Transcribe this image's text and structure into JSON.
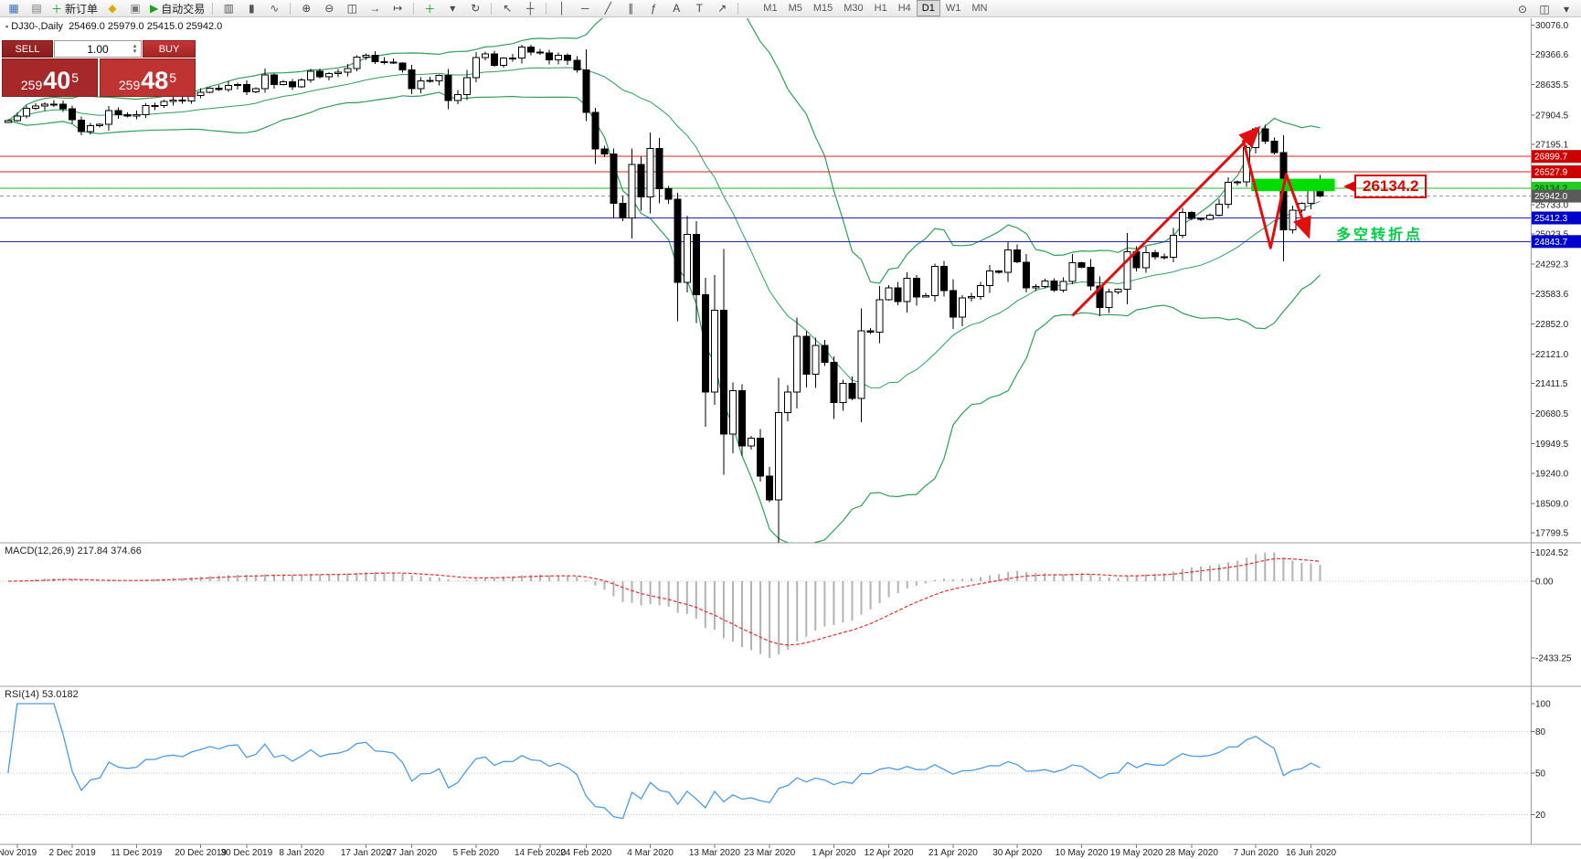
{
  "toolbar": {
    "buttons": [
      {
        "name": "new-chart",
        "glyph": "▦",
        "color": "#3b6fb5"
      },
      {
        "name": "profiles",
        "glyph": "▤",
        "color": "#777777"
      },
      {
        "name": "new-order",
        "glyph": "＋",
        "color": "#1fa01f",
        "label": "新订单"
      },
      {
        "name": "metaeditor",
        "glyph": "◆",
        "color": "#e0a800"
      },
      {
        "name": "terminal",
        "glyph": "▣",
        "color": "#777777"
      },
      {
        "name": "autotrading",
        "glyph": "▶",
        "color": "#1fa01f",
        "label": "自动交易"
      },
      {
        "sep": true
      },
      {
        "name": "bar-chart",
        "glyph": "▥",
        "color": "#555555"
      },
      {
        "name": "candle-chart",
        "glyph": "▮",
        "color": "#555555"
      },
      {
        "name": "line-chart",
        "glyph": "∿",
        "color": "#555555"
      },
      {
        "sep": true
      },
      {
        "name": "zoom-in",
        "glyph": "⊕",
        "color": "#444444"
      },
      {
        "name": "zoom-out",
        "glyph": "⊖",
        "color": "#444444"
      },
      {
        "name": "tile-windows",
        "glyph": "◫",
        "color": "#444444"
      },
      {
        "name": "auto-scroll",
        "glyph": "→",
        "color": "#444444"
      },
      {
        "name": "chart-shift",
        "glyph": "↦",
        "color": "#444444"
      },
      {
        "sep": true
      },
      {
        "name": "indicators",
        "glyph": "＋",
        "color": "#1fa01f"
      },
      {
        "name": "period-menu",
        "glyph": "▾",
        "color": "#444444"
      },
      {
        "name": "templates",
        "glyph": "↻",
        "color": "#444444"
      },
      {
        "sep": true
      },
      {
        "name": "cursor",
        "glyph": "↖",
        "color": "#444444"
      },
      {
        "name": "crosshair",
        "glyph": "┼",
        "color": "#444444"
      },
      {
        "sep": true
      },
      {
        "name": "vertical-line-tool",
        "glyph": "│",
        "color": "#444444"
      },
      {
        "name": "horizontal-line-tool",
        "glyph": "─",
        "color": "#444444"
      },
      {
        "name": "trendline-tool",
        "glyph": "╱",
        "color": "#444444"
      },
      {
        "name": "channel-tool",
        "glyph": "∥",
        "color": "#444444"
      },
      {
        "name": "fibonacci-tool",
        "glyph": "ƒ",
        "color": "#444444"
      },
      {
        "name": "text-tool",
        "glyph": "A",
        "color": "#444444"
      },
      {
        "name": "label-tool",
        "glyph": "T",
        "color": "#444444"
      },
      {
        "name": "arrows-tool",
        "glyph": "↗",
        "color": "#444444"
      },
      {
        "sep": true
      }
    ],
    "timeframes": [
      "M1",
      "M5",
      "M15",
      "M30",
      "H1",
      "H4",
      "D1",
      "W1",
      "MN"
    ],
    "active_timeframe": "D1",
    "right_buttons": [
      {
        "name": "search",
        "glyph": "⊙",
        "color": "#444444"
      },
      {
        "name": "layout",
        "glyph": "◫",
        "color": "#444444"
      },
      {
        "name": "more",
        "glyph": "▾",
        "color": "#444444"
      }
    ]
  },
  "chart": {
    "symbol_period": "DJ30-,Daily",
    "ohlc": "25469.0 25979.0 25415.0 25942.0"
  },
  "trade_panel": {
    "sell_label": "SELL",
    "buy_label": "BUY",
    "volume": "1.00",
    "sell_price": "25940.5",
    "buy_price": "25948.5",
    "sell_pre": "259",
    "sell_big": "40",
    "sell_sup": "5",
    "buy_pre": "259",
    "buy_big": "48",
    "buy_sup": "5"
  },
  "chart_data": {
    "type": "candlestick",
    "symbol": "DJ30-",
    "timeframe": "Daily",
    "ohlc_current": {
      "open": 25469.0,
      "high": 25979.0,
      "low": 25415.0,
      "close": 25942.0
    },
    "price_range": {
      "top": 30076.0,
      "bottom": 17799.5
    },
    "closes": [
      27766,
      27875,
      28066,
      28121,
      28164,
      28164,
      28051,
      27783,
      27503,
      27650,
      27678,
      28015,
      27910,
      27882,
      27911,
      28132,
      28135,
      28236,
      28267,
      28239,
      28377,
      28455,
      28551,
      28515,
      28621,
      28645,
      28462,
      28538,
      28869,
      28635,
      28703,
      28584,
      28745,
      28957,
      28824,
      28907,
      28940,
      29030,
      29297,
      29348,
      29196,
      29186,
      29160,
      28990,
      28536,
      28723,
      28734,
      28859,
      28256,
      28400,
      28808,
      29290,
      29380,
      29103,
      29277,
      29276,
      29551,
      29423,
      29398,
      29232,
      29348,
      29220,
      28992,
      27961,
      27081,
      26958,
      25767,
      25409,
      26703,
      25917,
      27091,
      26121,
      25865,
      23851,
      25018,
      23553,
      21201,
      23186,
      20189,
      21237,
      19899,
      20087,
      19174,
      18592,
      20705,
      21200,
      22552,
      21637,
      22327,
      21917,
      20944,
      21413,
      21053,
      22680,
      22654,
      23434,
      23719,
      23391,
      23950,
      23504,
      23537,
      24242,
      23651,
      23019,
      23476,
      23515,
      23775,
      24134,
      24102,
      24634,
      24346,
      23724,
      23750,
      23883,
      23665,
      23876,
      24331,
      24222,
      23765,
      23248,
      23625,
      23685,
      24597,
      24207,
      24576,
      24474,
      24465,
      24995,
      25548,
      25401,
      25383,
      25475,
      25743,
      26270,
      26282,
      27111,
      27572,
      27273,
      26990,
      25128,
      25605,
      25763,
      26289,
      25942
    ],
    "bollinger": {
      "period": 20,
      "deviation": 2,
      "color": "#2e9e57"
    },
    "price_axis_ticks": [
      30076.0,
      29366.6,
      28635.5,
      27904.5,
      27195.1,
      25733.0,
      25023.5,
      24292.3,
      23583.6,
      22852.0,
      22121.0,
      21411.5,
      20680.5,
      19949.5,
      19240.0,
      18509.0,
      17799.5
    ],
    "hlines": [
      {
        "value": 26899.7,
        "color": "#dd2222",
        "badge_bg": "#cc0000",
        "badge_fg": "#ffffff"
      },
      {
        "value": 26527.9,
        "color": "#dd2222",
        "badge_bg": "#cc0000",
        "badge_fg": "#ffffff"
      },
      {
        "value": 26134.2,
        "color": "#22bb22",
        "badge_bg": "#22cc22",
        "badge_fg": "#003300"
      },
      {
        "value": 25412.3,
        "color": "#2222cc",
        "badge_bg": "#0000cc",
        "badge_fg": "#ffffff"
      },
      {
        "value": 24843.7,
        "color": "#2222cc",
        "badge_bg": "#0000cc",
        "badge_fg": "#ffffff"
      }
    ],
    "current_price": {
      "value": 25942.0,
      "badge_bg": "#5a5a5a",
      "badge_fg": "#ffffff"
    },
    "date_axis": [
      {
        "label": "Nov 2019",
        "i": 1
      },
      {
        "label": "2 Dec 2019",
        "i": 7
      },
      {
        "label": "11 Dec 2019",
        "i": 14
      },
      {
        "label": "20 Dec 2019",
        "i": 21
      },
      {
        "label": "30 Dec 2019",
        "i": 26
      },
      {
        "label": "8 Jan 2020",
        "i": 32
      },
      {
        "label": "17 Jan 2020",
        "i": 39
      },
      {
        "label": "27 Jan 2020",
        "i": 44
      },
      {
        "label": "5 Feb 2020",
        "i": 51
      },
      {
        "label": "14 Feb 2020",
        "i": 58
      },
      {
        "label": "24 Feb 2020",
        "i": 63
      },
      {
        "label": "4 Mar 2020",
        "i": 70
      },
      {
        "label": "13 Mar 2020",
        "i": 77
      },
      {
        "label": "23 Mar 2020",
        "i": 83
      },
      {
        "label": "1 Apr 2020",
        "i": 90
      },
      {
        "label": "12 Apr 2020",
        "i": 96
      },
      {
        "label": "21 Apr 2020",
        "i": 103
      },
      {
        "label": "30 Apr 2020",
        "i": 110
      },
      {
        "label": "10 May 2020",
        "i": 117
      },
      {
        "label": "19 May 2020",
        "i": 123
      },
      {
        "label": "28 May 2020",
        "i": 129
      },
      {
        "label": "7 Jun 2020",
        "i": 136
      },
      {
        "label": "16 Jun 2020",
        "i": 142
      }
    ],
    "macd": {
      "label": "MACD(12,26,9) 217.84 374.66",
      "fast": 12,
      "slow": 26,
      "signal": 9,
      "axis_max": "1024.52",
      "axis_zero": "0.00",
      "axis_min": "-2433.25",
      "histogram_color": "#b2b2b2",
      "signal_color": "#e03030"
    },
    "rsi": {
      "label": "RSI(14) 53.0182",
      "period": 14,
      "current": 53.0182,
      "levels": [
        80,
        50,
        20
      ],
      "axis_labels": [
        "100",
        "80",
        "50",
        "20"
      ],
      "line_color": "#4d9ae0"
    },
    "shapes": {
      "trend_arrow": {
        "points": [
          [
            116,
            23050
          ],
          [
            136,
            27520
          ]
        ],
        "color": "#e01010"
      },
      "zigzag_arrow": {
        "points": [
          [
            134.6,
            27300
          ],
          [
            137.6,
            24690
          ],
          [
            139.3,
            26470
          ],
          [
            141.6,
            25060
          ]
        ],
        "color": "#e01010"
      },
      "highlight_rect": {
        "i0": 135.5,
        "i1": 144.6,
        "p_low": 26060,
        "p_high": 26360,
        "color": "#00dd00"
      },
      "callout": {
        "text": "26134.2",
        "color": "#dd0000"
      },
      "turning_point": {
        "text": "多空转折点",
        "color": "#00cc44"
      }
    }
  }
}
